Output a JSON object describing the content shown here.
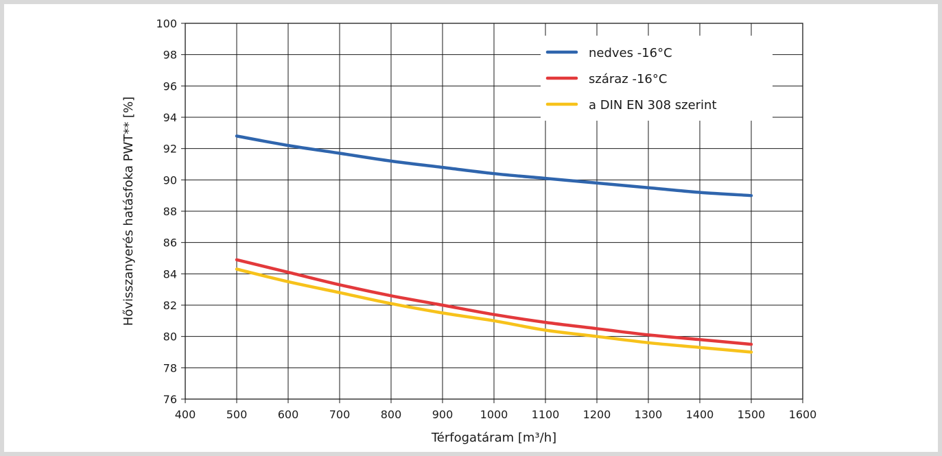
{
  "chart_data": {
    "type": "line",
    "title": "",
    "xlabel": "Térfogatáram [m³/h]",
    "ylabel": "Hővisszanyerés hatásfoka PWT** [%]",
    "xlim": [
      400,
      1600
    ],
    "ylim": [
      76,
      100
    ],
    "xticks": [
      400,
      500,
      600,
      700,
      800,
      900,
      1000,
      1100,
      1200,
      1300,
      1400,
      1500,
      1600
    ],
    "yticks": [
      76,
      78,
      80,
      82,
      84,
      86,
      88,
      90,
      92,
      94,
      96,
      98,
      100
    ],
    "grid": true,
    "legend_position": "top-right",
    "x": [
      500,
      600,
      700,
      800,
      900,
      1000,
      1100,
      1200,
      1300,
      1400,
      1500
    ],
    "series": [
      {
        "name": "nedves -16°C",
        "color": "#2f65ad",
        "values": [
          92.8,
          92.2,
          91.7,
          91.2,
          90.8,
          90.4,
          90.1,
          89.8,
          89.5,
          89.2,
          89.0
        ]
      },
      {
        "name": "száraz -16°C",
        "color": "#e3393b",
        "values": [
          84.9,
          84.1,
          83.3,
          82.6,
          82.0,
          81.4,
          80.9,
          80.5,
          80.1,
          79.8,
          79.5
        ]
      },
      {
        "name": "a DIN EN 308 szerint",
        "color": "#f7c21b",
        "values": [
          84.3,
          83.5,
          82.8,
          82.1,
          81.5,
          81.0,
          80.4,
          80.0,
          79.6,
          79.3,
          79.0
        ]
      }
    ]
  }
}
